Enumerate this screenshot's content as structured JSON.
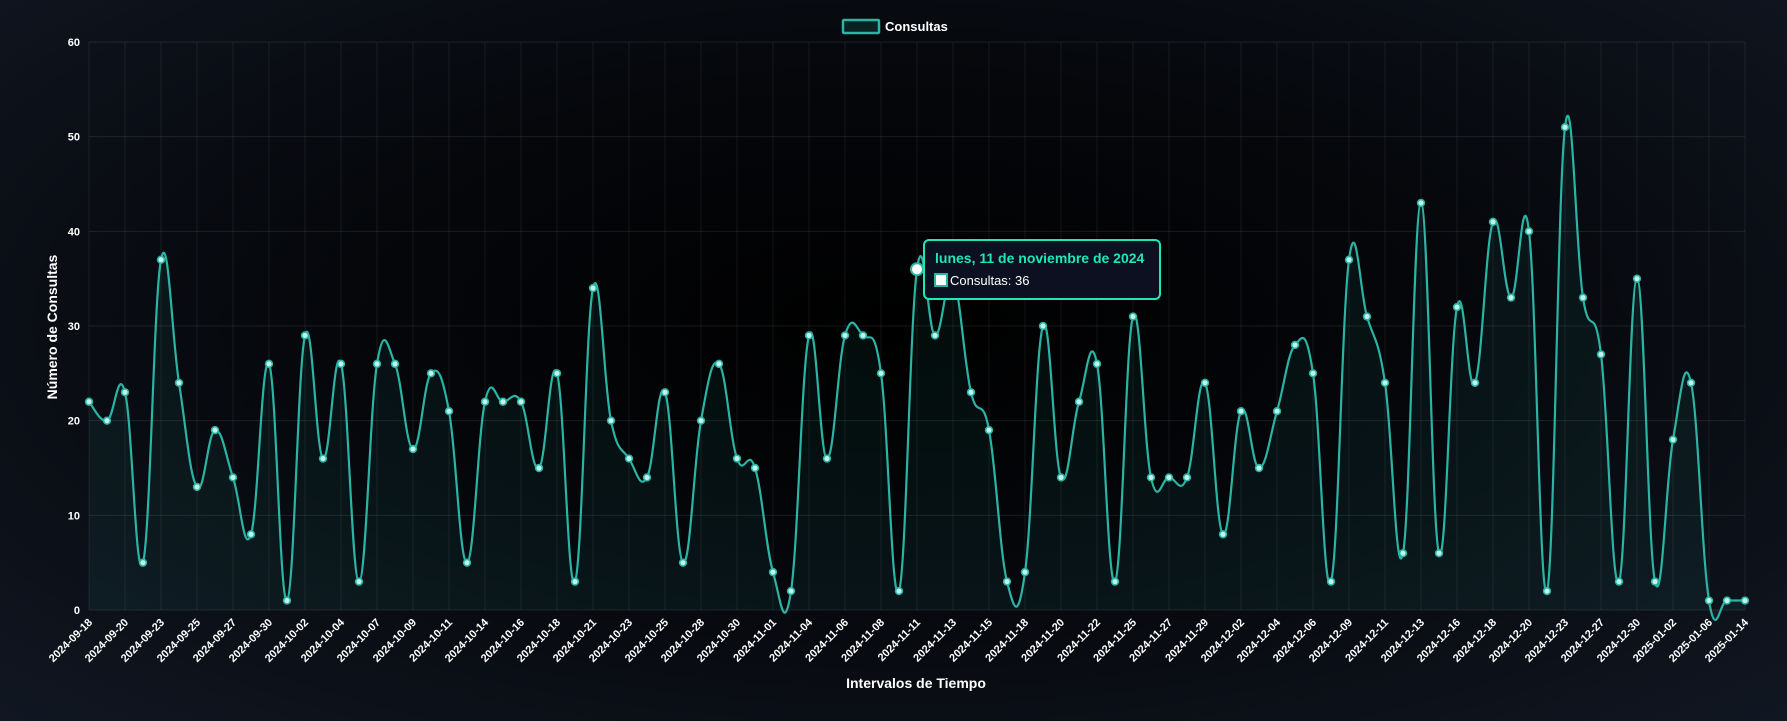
{
  "chart_data": {
    "type": "line",
    "title": "",
    "xlabel": "Intervalos de Tiempo",
    "ylabel": "Número de Consultas",
    "ylim": [
      0,
      60
    ],
    "yticks": [
      0,
      10,
      20,
      30,
      40,
      50,
      60
    ],
    "grid": true,
    "legend": "top-center",
    "colors": {
      "line": "#2bb3a3",
      "point_fill": "#bff3ec",
      "tooltip_border": "#1de9b6",
      "tooltip_title": "#1de9b6",
      "tooltip_bg": "#0d1020"
    },
    "x_tick_labels": [
      "2024-09-18",
      "2024-09-20",
      "2024-09-23",
      "2024-09-25",
      "2024-09-27",
      "2024-09-30",
      "2024-10-02",
      "2024-10-04",
      "2024-10-07",
      "2024-10-09",
      "2024-10-11",
      "2024-10-14",
      "2024-10-16",
      "2024-10-18",
      "2024-10-21",
      "2024-10-23",
      "2024-10-25",
      "2024-10-28",
      "2024-10-30",
      "2024-11-01",
      "2024-11-04",
      "2024-11-06",
      "2024-11-08",
      "2024-11-11",
      "2024-11-13",
      "2024-11-15",
      "2024-11-18",
      "2024-11-20",
      "2024-11-22",
      "2024-11-25",
      "2024-11-27",
      "2024-11-29",
      "2024-12-02",
      "2024-12-04",
      "2024-12-06",
      "2024-12-09",
      "2024-12-11",
      "2024-12-13",
      "2024-12-16",
      "2024-12-18",
      "2024-12-20",
      "2024-12-23",
      "2024-12-27",
      "2024-12-30",
      "2025-01-02",
      "2025-01-06",
      "2025-01-14"
    ],
    "series": [
      {
        "name": "Consultas",
        "values": [
          22,
          20,
          23,
          5,
          37,
          24,
          13,
          19,
          14,
          8,
          26,
          1,
          29,
          16,
          26,
          3,
          26,
          26,
          17,
          25,
          21,
          5,
          22,
          22,
          22,
          15,
          25,
          3,
          34,
          20,
          16,
          14,
          23,
          5,
          20,
          26,
          16,
          15,
          4,
          2,
          29,
          16,
          29,
          29,
          25,
          2,
          36,
          29,
          35,
          23,
          19,
          3,
          4,
          30,
          14,
          22,
          26,
          3,
          31,
          14,
          14,
          14,
          24,
          8,
          21,
          15,
          21,
          28,
          25,
          3,
          37,
          31,
          24,
          6,
          43,
          6,
          32,
          24,
          41,
          33,
          40,
          2,
          51,
          33,
          27,
          3,
          35,
          3,
          18,
          24,
          1,
          1,
          1
        ]
      }
    ],
    "tooltip": {
      "title": "lunes, 11 de noviembre de 2024",
      "label": "Consultas: 36",
      "point_index": 46
    }
  }
}
